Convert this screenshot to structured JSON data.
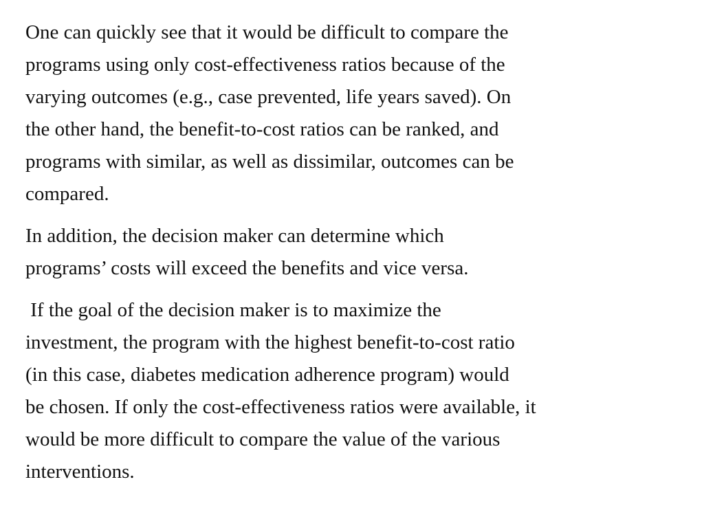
{
  "paragraphs": [
    {
      "lines": [
        "One can quickly see that it would be difficult to compare the",
        "programs using only cost-effectiveness ratios because of the",
        "varying outcomes (e.g., case prevented, life years saved). On",
        "the other hand, the benefit-to-cost ratios can be ranked, and",
        "programs with similar, as well as dissimilar, outcomes can be",
        "compared."
      ]
    },
    {
      "lines": [
        "In addition, the decision maker can determine which",
        "programs’ costs will exceed the benefits and vice versa."
      ]
    },
    {
      "lines": [
        " If the goal of the decision maker is to maximize the",
        "investment, the program with the highest benefit-to-cost ratio",
        "(in this case, diabetes medication adherence program) would",
        "be chosen. If only the cost-effectiveness ratios were available, it",
        "would be more difficult to compare the value of the various",
        "interventions."
      ]
    }
  ]
}
